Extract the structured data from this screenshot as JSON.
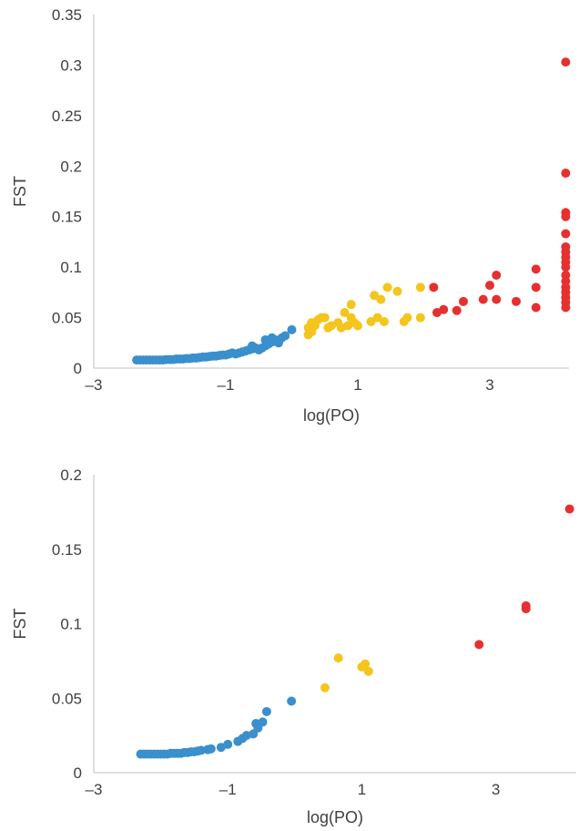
{
  "colors": {
    "blue": "#3a8fcc",
    "yellow": "#f4c51d",
    "red": "#e63030",
    "axis": "#bfbfbf",
    "text": "#404040"
  },
  "chart_data": [
    {
      "type": "scatter",
      "title": "",
      "xlabel": "log(PO)",
      "ylabel": "FST",
      "xlim": [
        -3,
        4.2
      ],
      "ylim": [
        0,
        0.35
      ],
      "xticks": [
        -3,
        -1,
        1,
        3
      ],
      "xtick_labels": [
        "–3",
        "–1",
        "1",
        "3"
      ],
      "yticks": [
        0,
        0.05,
        0.1,
        0.15,
        0.2,
        0.25,
        0.3,
        0.35
      ],
      "ytick_labels": [
        "0",
        "0.05",
        "0.1",
        "0.15",
        "0.2",
        "0.25",
        "0.3",
        "0.35"
      ],
      "grid": false,
      "series": [
        {
          "color": "blue",
          "points": [
            [
              -2.35,
              0.008
            ],
            [
              -2.3,
              0.008
            ],
            [
              -2.25,
              0.008
            ],
            [
              -2.2,
              0.008
            ],
            [
              -2.15,
              0.008
            ],
            [
              -2.1,
              0.008
            ],
            [
              -2.05,
              0.008
            ],
            [
              -2.0,
              0.008
            ],
            [
              -1.95,
              0.008
            ],
            [
              -1.9,
              0.0085
            ],
            [
              -1.85,
              0.0085
            ],
            [
              -1.8,
              0.0085
            ],
            [
              -1.75,
              0.009
            ],
            [
              -1.7,
              0.009
            ],
            [
              -1.65,
              0.009
            ],
            [
              -1.6,
              0.0095
            ],
            [
              -1.55,
              0.0095
            ],
            [
              -1.5,
              0.01
            ],
            [
              -1.45,
              0.01
            ],
            [
              -1.4,
              0.0105
            ],
            [
              -1.35,
              0.011
            ],
            [
              -1.3,
              0.011
            ],
            [
              -1.25,
              0.0115
            ],
            [
              -1.2,
              0.012
            ],
            [
              -1.15,
              0.012
            ],
            [
              -1.1,
              0.0125
            ],
            [
              -1.05,
              0.013
            ],
            [
              -1.0,
              0.013
            ],
            [
              -0.95,
              0.014
            ],
            [
              -0.9,
              0.015
            ],
            [
              -0.85,
              0.014
            ],
            [
              -0.8,
              0.015
            ],
            [
              -0.75,
              0.016
            ],
            [
              -0.7,
              0.017
            ],
            [
              -0.65,
              0.018
            ],
            [
              -0.6,
              0.019
            ],
            [
              -0.55,
              0.02
            ],
            [
              -0.6,
              0.022
            ],
            [
              -0.5,
              0.018
            ],
            [
              -0.45,
              0.02
            ],
            [
              -0.4,
              0.022
            ],
            [
              -0.35,
              0.024
            ],
            [
              -0.4,
              0.028
            ],
            [
              -0.3,
              0.026
            ],
            [
              -0.25,
              0.028
            ],
            [
              -0.3,
              0.03
            ],
            [
              -0.2,
              0.025
            ],
            [
              -0.15,
              0.03
            ],
            [
              -0.1,
              0.032
            ],
            [
              0.0,
              0.038
            ]
          ]
        },
        {
          "color": "yellow",
          "points": [
            [
              0.25,
              0.033
            ],
            [
              0.25,
              0.04
            ],
            [
              0.3,
              0.036
            ],
            [
              0.3,
              0.045
            ],
            [
              0.35,
              0.042
            ],
            [
              0.4,
              0.048
            ],
            [
              0.45,
              0.05
            ],
            [
              0.5,
              0.05
            ],
            [
              0.55,
              0.04
            ],
            [
              0.6,
              0.042
            ],
            [
              0.7,
              0.045
            ],
            [
              0.75,
              0.04
            ],
            [
              0.8,
              0.055
            ],
            [
              0.85,
              0.042
            ],
            [
              0.9,
              0.05
            ],
            [
              0.95,
              0.045
            ],
            [
              0.9,
              0.063
            ],
            [
              1.0,
              0.042
            ],
            [
              1.2,
              0.046
            ],
            [
              1.25,
              0.072
            ],
            [
              1.3,
              0.05
            ],
            [
              1.35,
              0.068
            ],
            [
              1.4,
              0.046
            ],
            [
              1.45,
              0.08
            ],
            [
              1.6,
              0.076
            ],
            [
              1.7,
              0.046
            ],
            [
              1.75,
              0.05
            ],
            [
              1.95,
              0.05
            ],
            [
              1.95,
              0.08
            ]
          ]
        },
        {
          "color": "red",
          "points": [
            [
              2.15,
              0.08
            ],
            [
              2.2,
              0.055
            ],
            [
              2.3,
              0.058
            ],
            [
              2.5,
              0.057
            ],
            [
              2.6,
              0.066
            ],
            [
              2.9,
              0.068
            ],
            [
              3.0,
              0.082
            ],
            [
              3.1,
              0.092
            ],
            [
              3.1,
              0.068
            ],
            [
              3.4,
              0.066
            ],
            [
              3.7,
              0.06
            ],
            [
              3.7,
              0.08
            ],
            [
              3.7,
              0.098
            ],
            [
              4.15,
              0.06
            ],
            [
              4.15,
              0.065
            ],
            [
              4.15,
              0.07
            ],
            [
              4.15,
              0.075
            ],
            [
              4.15,
              0.08
            ],
            [
              4.15,
              0.086
            ],
            [
              4.15,
              0.092
            ],
            [
              4.15,
              0.1
            ],
            [
              4.15,
              0.105
            ],
            [
              4.15,
              0.11
            ],
            [
              4.15,
              0.115
            ],
            [
              4.15,
              0.12
            ],
            [
              4.15,
              0.133
            ],
            [
              4.15,
              0.15
            ],
            [
              4.15,
              0.154
            ],
            [
              4.15,
              0.193
            ],
            [
              4.15,
              0.303
            ]
          ]
        }
      ]
    },
    {
      "type": "scatter",
      "title": "",
      "xlabel": "log(PO)",
      "ylabel": "FST",
      "xlim": [
        -3,
        4.2
      ],
      "ylim": [
        0,
        0.2
      ],
      "xticks": [
        -3,
        -1,
        1,
        3
      ],
      "xtick_labels": [
        "–3",
        "–1",
        "1",
        "3"
      ],
      "yticks": [
        0,
        0.05,
        0.1,
        0.15,
        0.2
      ],
      "ytick_labels": [
        "0",
        "0.05",
        "0.1",
        "0.15",
        "0.2"
      ],
      "grid": false,
      "series": [
        {
          "color": "blue",
          "points": [
            [
              -2.3,
              0.0125
            ],
            [
              -2.25,
              0.0125
            ],
            [
              -2.2,
              0.0125
            ],
            [
              -2.15,
              0.0125
            ],
            [
              -2.1,
              0.0125
            ],
            [
              -2.05,
              0.0125
            ],
            [
              -2.0,
              0.0125
            ],
            [
              -1.95,
              0.0125
            ],
            [
              -1.9,
              0.0125
            ],
            [
              -1.85,
              0.013
            ],
            [
              -1.8,
              0.013
            ],
            [
              -1.75,
              0.013
            ],
            [
              -1.7,
              0.013
            ],
            [
              -1.65,
              0.0135
            ],
            [
              -1.6,
              0.0135
            ],
            [
              -1.55,
              0.014
            ],
            [
              -1.5,
              0.014
            ],
            [
              -1.45,
              0.0145
            ],
            [
              -1.4,
              0.015
            ],
            [
              -1.3,
              0.0155
            ],
            [
              -1.25,
              0.016
            ],
            [
              -1.1,
              0.017
            ],
            [
              -1.0,
              0.019
            ],
            [
              -0.85,
              0.021
            ],
            [
              -0.78,
              0.023
            ],
            [
              -0.72,
              0.025
            ],
            [
              -0.62,
              0.026
            ],
            [
              -0.58,
              0.033
            ],
            [
              -0.55,
              0.03
            ],
            [
              -0.48,
              0.034
            ],
            [
              -0.42,
              0.041
            ],
            [
              -0.05,
              0.048
            ]
          ]
        },
        {
          "color": "yellow",
          "points": [
            [
              0.45,
              0.057
            ],
            [
              0.65,
              0.077
            ],
            [
              1.0,
              0.071
            ],
            [
              1.05,
              0.073
            ],
            [
              1.1,
              0.068
            ]
          ]
        },
        {
          "color": "red",
          "points": [
            [
              2.75,
              0.086
            ],
            [
              3.45,
              0.11
            ],
            [
              3.45,
              0.112
            ],
            [
              4.1,
              0.177
            ]
          ]
        }
      ]
    }
  ]
}
